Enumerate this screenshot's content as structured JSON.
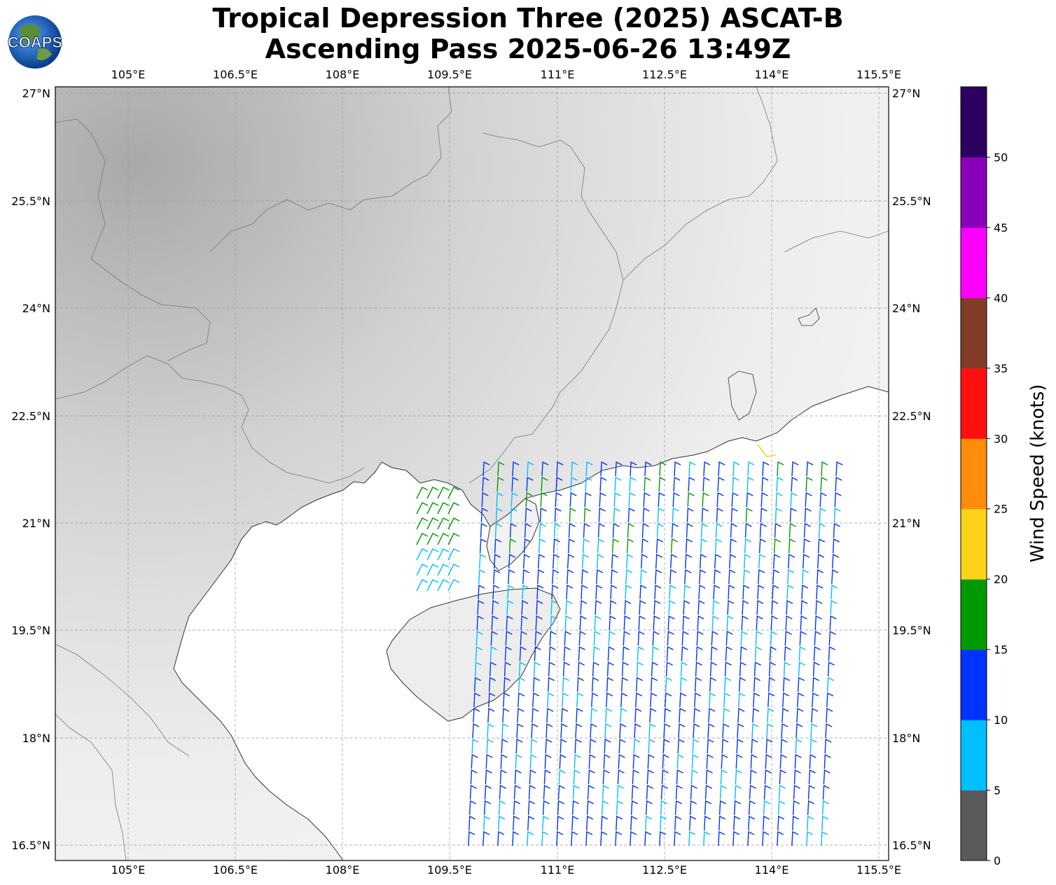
{
  "title_line1": "Tropical Depression Three (2025) ASCAT-B",
  "title_line2": "Ascending Pass 2025-06-26 13:49Z",
  "logo_text": "COAPS",
  "lon_ticks": [
    "105°E",
    "106.5°E",
    "108°E",
    "109.5°E",
    "111°E",
    "112.5°E",
    "114°E",
    "115.5°E"
  ],
  "lat_ticks": [
    "27°N",
    "25.5°N",
    "24°N",
    "22.5°N",
    "21°N",
    "19.5°N",
    "18°N",
    "16.5°N"
  ],
  "colorbar": {
    "label": "Wind Speed (knots)",
    "ticks": [
      "0",
      "5",
      "10",
      "15",
      "20",
      "25",
      "30",
      "35",
      "40",
      "45",
      "50"
    ],
    "colors": [
      "#5a5a5a",
      "#00bfff",
      "#0033ff",
      "#009a00",
      "#ffd21a",
      "#ff8c0a",
      "#ff1010",
      "#823c28",
      "#ff00ff",
      "#8a00b8",
      "#2d0060"
    ]
  }
}
